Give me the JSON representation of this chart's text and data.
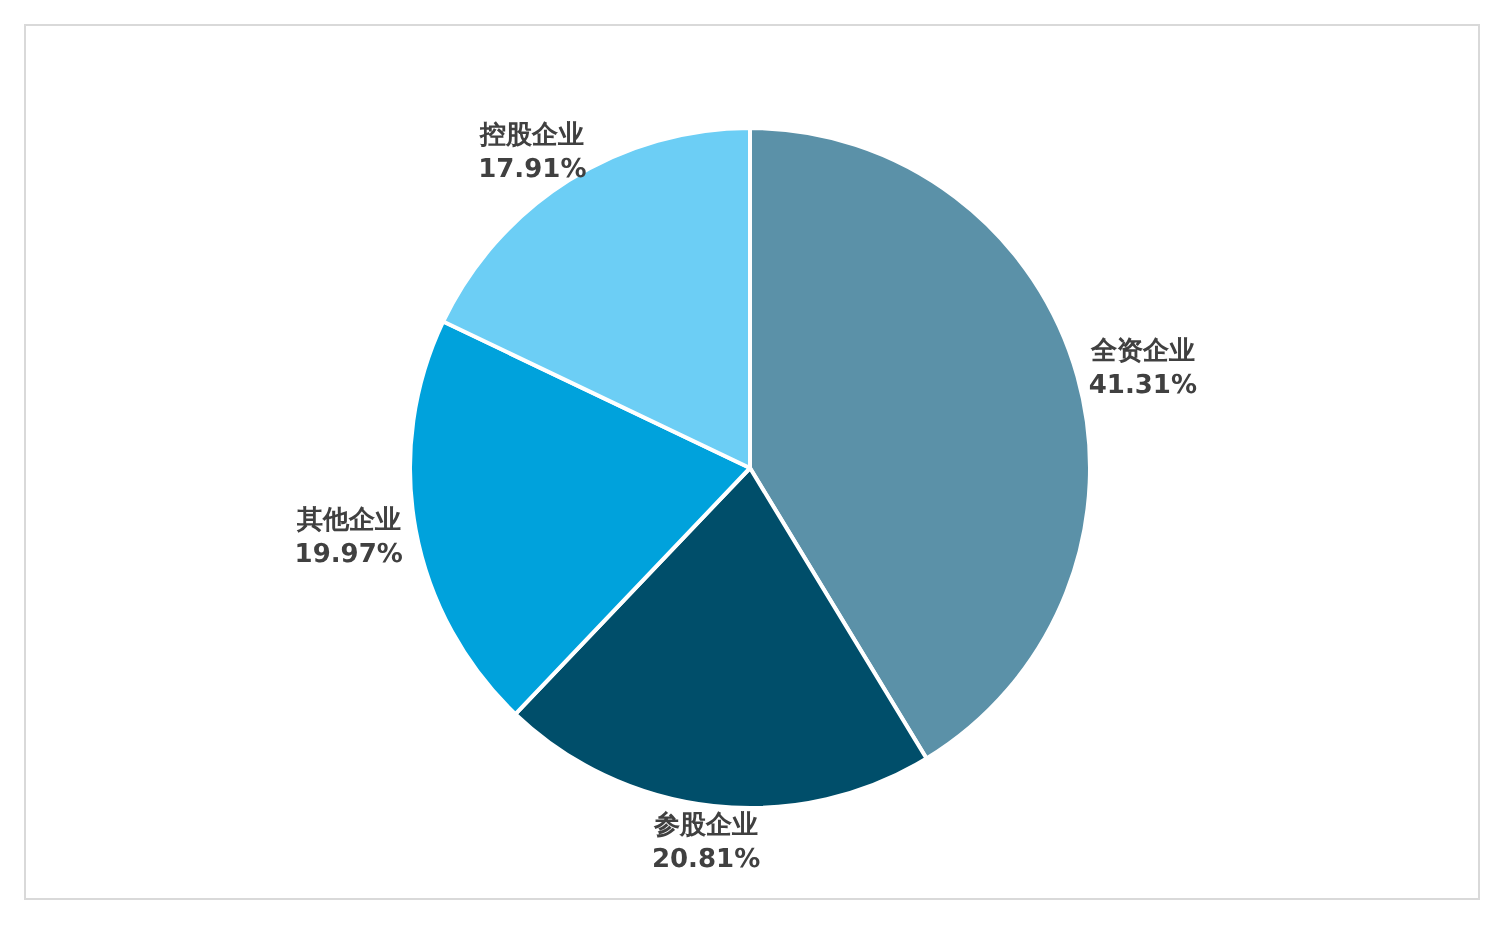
{
  "chart_data": {
    "type": "pie",
    "categories": [
      "全资企业",
      "参股企业",
      "其他企业",
      "控股企业"
    ],
    "values": [
      41.31,
      20.81,
      19.97,
      17.91
    ],
    "value_labels": [
      "41.31%",
      "20.81%",
      "19.97%",
      "17.91%"
    ],
    "colors": [
      "#5b91a8",
      "#004e6a",
      "#00a2dc",
      "#6ccef5"
    ]
  }
}
